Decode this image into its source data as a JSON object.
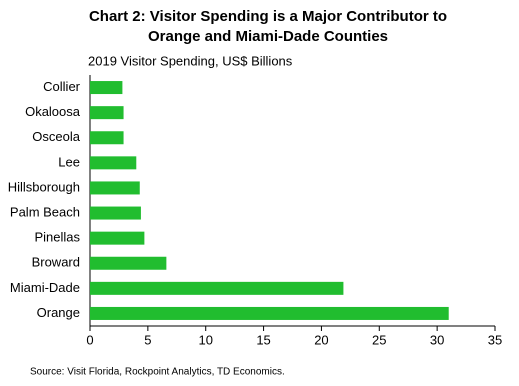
{
  "chart_data": {
    "type": "barh",
    "title": [
      "Chart 2: Visitor Spending is a Major Contributor to",
      "Orange and Miami-Dade  Counties"
    ],
    "subtitle": "2019 Visitor Spending, US$ Billions",
    "categories": [
      "Collier",
      "Okaloosa",
      "Osceola",
      "Lee",
      "Hillsborough",
      "Palm Beach",
      "Pinellas",
      "Broward",
      "Miami-Dade",
      "Orange"
    ],
    "values": [
      2.8,
      2.9,
      2.9,
      4.0,
      4.3,
      4.4,
      4.7,
      6.6,
      21.9,
      31.0
    ],
    "color": "#21bd2f",
    "xlim": [
      0,
      35
    ],
    "xticks": [
      0,
      5,
      10,
      15,
      20,
      25,
      30,
      35
    ],
    "grid": false,
    "source": "Source: Visit Florida,  Rockpoint  Analytics, TD Economics."
  }
}
